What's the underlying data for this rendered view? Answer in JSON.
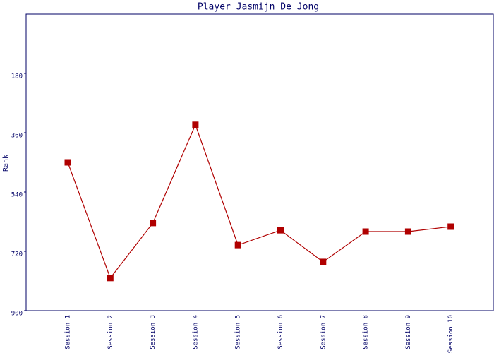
{
  "chart_data": {
    "type": "line",
    "title": "Player Jasmijn De Jong",
    "y_label": "Rank",
    "categories": [
      "Session 1",
      "Session 2",
      "Session 3",
      "Session 4",
      "Session 5",
      "Session 6",
      "Session 7",
      "Session 8",
      "Session 9",
      "Session 10"
    ],
    "series": [
      {
        "name": "Rank",
        "color": "#b00000",
        "values": [
          450,
          801,
          634,
          336,
          701,
          656,
          752,
          660,
          660,
          645
        ]
      }
    ],
    "ylim": [
      900,
      0
    ],
    "yticks": [
      180,
      360,
      540,
      720,
      900
    ],
    "grid": false
  }
}
